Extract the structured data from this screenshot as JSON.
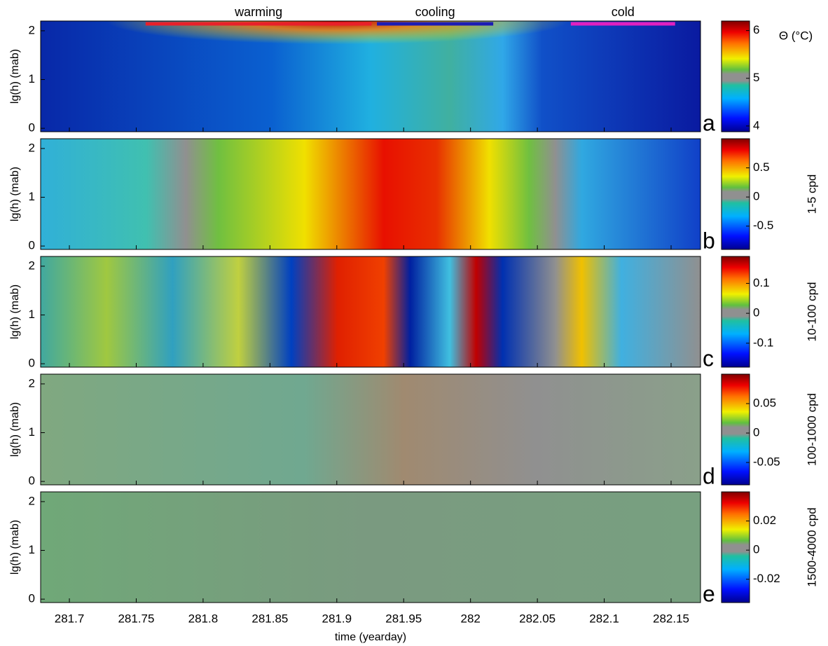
{
  "chart_data": [
    {
      "type": "heatmap",
      "panel_label": "a",
      "ylabel": "lg(h) (mab)",
      "xlim": [
        281.6785,
        282.172
      ],
      "ylim": [
        -0.07,
        2.2
      ],
      "yticks": [
        0,
        1,
        2
      ],
      "colorbar_label": "Θ (°C)",
      "colorbar_label_color": "#000000",
      "clim": [
        3.88,
        6.2
      ],
      "cticks": [
        4,
        5,
        6
      ],
      "colormap": "jet",
      "periods": [
        {
          "label": "warming",
          "color": "#e8202a",
          "xrange": [
            281.757,
            281.926
          ]
        },
        {
          "label": "cooling",
          "color": "#1c1cb4",
          "xrange": [
            281.93,
            282.017
          ]
        },
        {
          "label": "cold",
          "color": "#e020c0",
          "xrange": [
            282.075,
            282.153
          ]
        }
      ]
    },
    {
      "type": "heatmap",
      "panel_label": "b",
      "ylabel": "lg(h) (mab)",
      "xlim": [
        281.6785,
        282.172
      ],
      "ylim": [
        -0.07,
        2.2
      ],
      "yticks": [
        0,
        1,
        2
      ],
      "colorbar_label": "1-5 cpd",
      "colorbar_label_color": "#000000",
      "clim": [
        -0.9,
        1.0
      ],
      "cticks": [
        0.5,
        0,
        -0.5
      ],
      "colormap": "jet"
    },
    {
      "type": "heatmap",
      "panel_label": "c",
      "ylabel": "lg(h) (mab)",
      "xlim": [
        281.6785,
        282.172
      ],
      "ylim": [
        -0.07,
        2.2
      ],
      "yticks": [
        0,
        1,
        2
      ],
      "colorbar_label": "10-100 cpd",
      "colorbar_label_color": "#1010c8",
      "clim": [
        -0.18,
        0.19
      ],
      "cticks": [
        0.1,
        0,
        -0.1
      ],
      "colormap": "jet"
    },
    {
      "type": "heatmap",
      "panel_label": "d",
      "ylabel": "lg(h) (mab)",
      "xlim": [
        281.6785,
        282.172
      ],
      "ylim": [
        -0.07,
        2.2
      ],
      "yticks": [
        0,
        1,
        2
      ],
      "colorbar_label": "100-1000 cpd",
      "colorbar_label_color": "#e01010",
      "clim": [
        -0.088,
        0.1
      ],
      "cticks": [
        0.05,
        0,
        -0.05
      ],
      "colormap": "jet"
    },
    {
      "type": "heatmap",
      "panel_label": "e",
      "ylabel": "lg(h) (mab)",
      "xlim": [
        281.6785,
        282.172
      ],
      "ylim": [
        -0.07,
        2.2
      ],
      "yticks": [
        0,
        1,
        2
      ],
      "colorbar_label": "1500-4000 cpd",
      "colorbar_label_color": "#20b020",
      "clim": [
        -0.036,
        0.04
      ],
      "cticks": [
        0.02,
        0,
        -0.02
      ],
      "colormap": "jet",
      "xticks": [
        281.7,
        281.75,
        281.8,
        281.85,
        281.9,
        281.95,
        282,
        282.05,
        282.1,
        282.15
      ],
      "xlabel": "time (yearday)"
    }
  ]
}
